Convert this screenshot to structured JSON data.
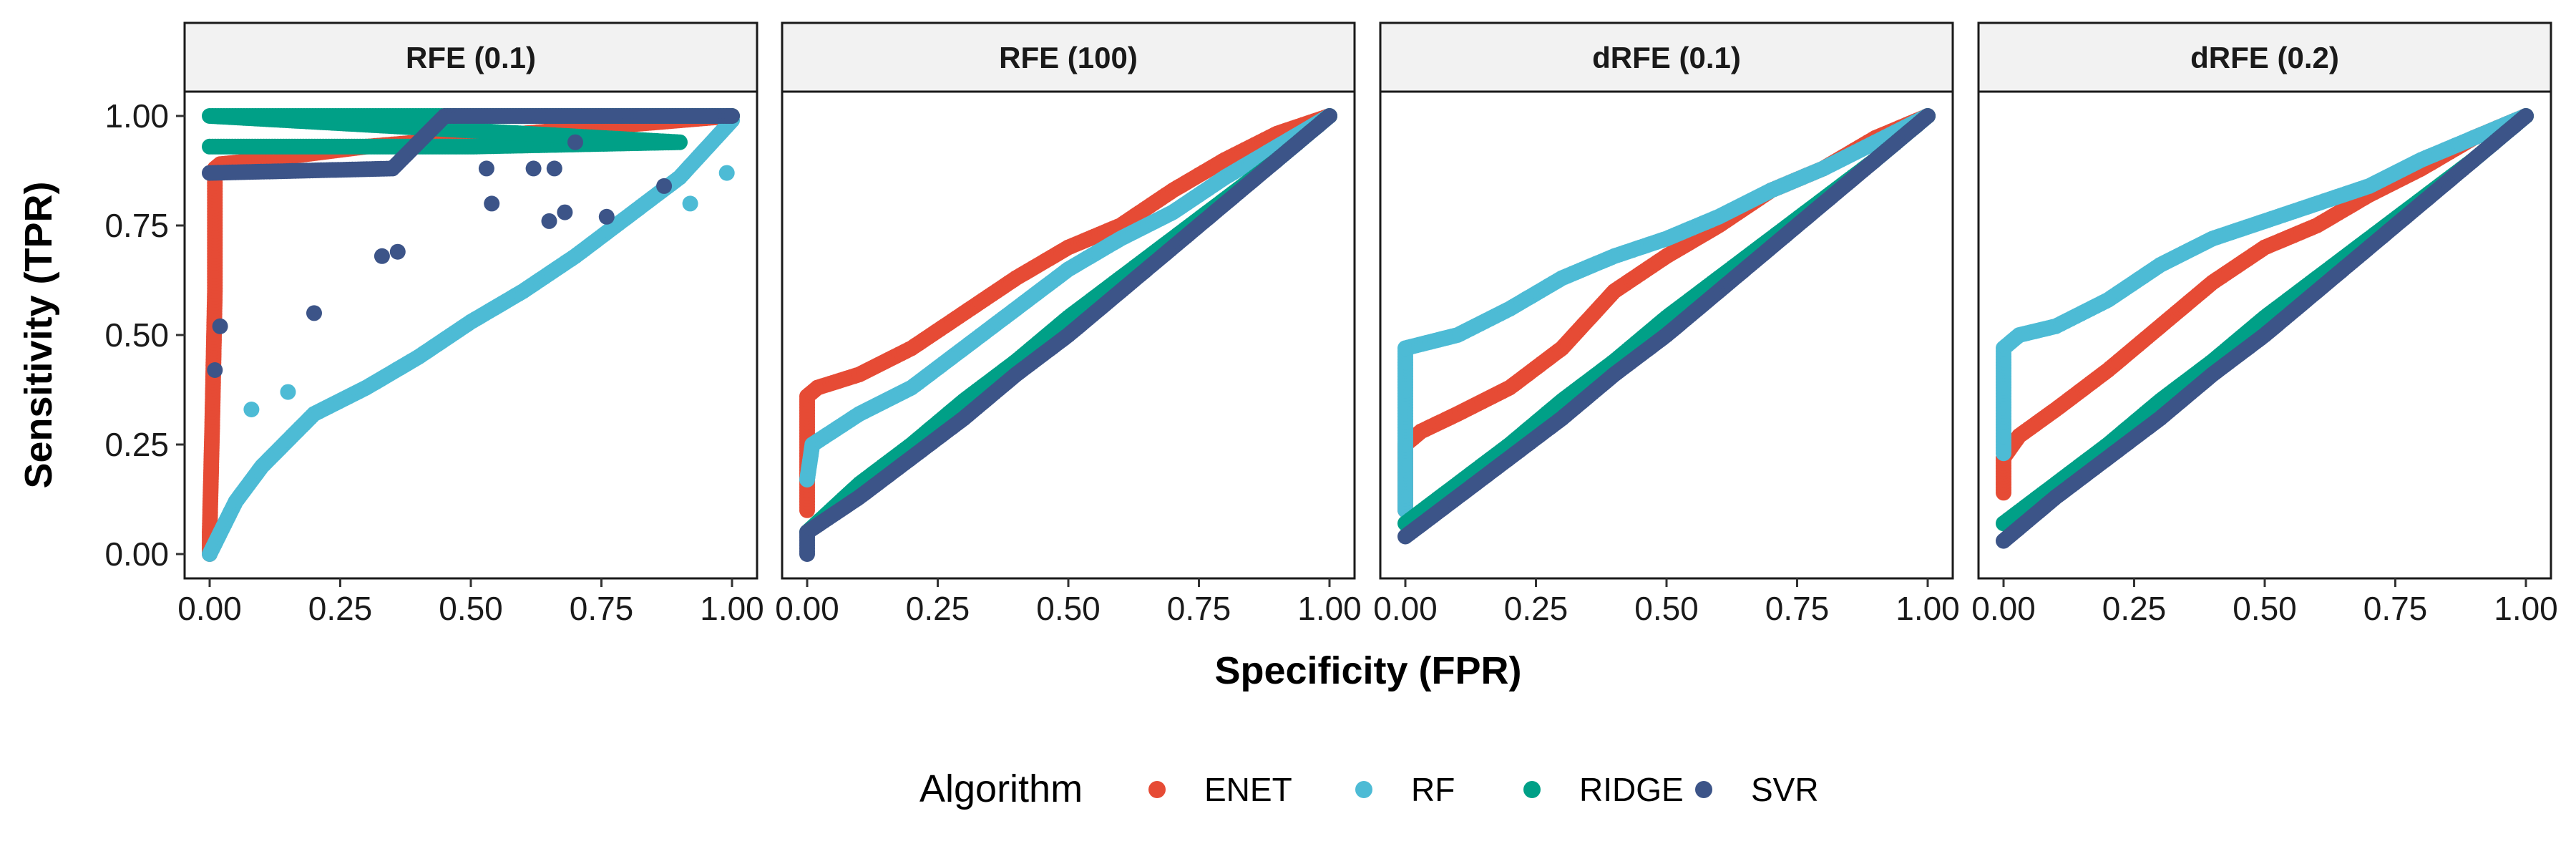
{
  "chart_data": {
    "type": "scatter",
    "xlabel": "Specificity (FPR)",
    "ylabel": "Sensitivity (TPR)",
    "xlim": [
      0,
      1
    ],
    "ylim": [
      0,
      1
    ],
    "x_ticks": [
      "0.00",
      "0.25",
      "0.50",
      "0.75",
      "1.00"
    ],
    "y_ticks": [
      "0.00",
      "0.25",
      "0.50",
      "0.75",
      "1.00"
    ],
    "grid": false,
    "legend": {
      "title": "Algorithm",
      "position": "bottom",
      "entries": [
        {
          "name": "ENET",
          "color": "#E64B35"
        },
        {
          "name": "RF",
          "color": "#4DBBD5"
        },
        {
          "name": "RIDGE",
          "color": "#00A087"
        },
        {
          "name": "SVR",
          "color": "#3C5488"
        }
      ]
    },
    "panels": [
      {
        "title": "RFE (0.1)",
        "series": [
          {
            "name": "ENET",
            "points": [
              [
                0,
                0
              ],
              [
                0,
                0.05
              ],
              [
                0.005,
                0.3
              ],
              [
                0.01,
                0.6
              ],
              [
                0.01,
                0.88
              ],
              [
                0.02,
                0.89
              ],
              [
                0.1,
                0.9
              ],
              [
                0.3,
                0.93
              ],
              [
                0.6,
                0.96
              ],
              [
                0.8,
                0.98
              ],
              [
                1.0,
                1.0
              ]
            ]
          },
          {
            "name": "RF",
            "points": [
              [
                0,
                0
              ],
              [
                0.05,
                0.12
              ],
              [
                0.1,
                0.2
              ],
              [
                0.2,
                0.32
              ],
              [
                0.3,
                0.38
              ],
              [
                0.4,
                0.45
              ],
              [
                0.5,
                0.53
              ],
              [
                0.6,
                0.6
              ],
              [
                0.7,
                0.68
              ],
              [
                0.8,
                0.77
              ],
              [
                0.9,
                0.86
              ],
              [
                1.0,
                0.99
              ]
            ],
            "scatter": [
              [
                0.08,
                0.33
              ],
              [
                0.15,
                0.37
              ],
              [
                0.92,
                0.8
              ],
              [
                0.99,
                0.87
              ]
            ]
          },
          {
            "name": "RIDGE",
            "points": [
              [
                0,
                0.93
              ],
              [
                0.5,
                0.93
              ],
              [
                0.9,
                0.94
              ],
              [
                0,
                1.0
              ],
              [
                0.4,
                1.0
              ],
              [
                0.8,
                1.0
              ],
              [
                1.0,
                1.0
              ]
            ]
          },
          {
            "name": "SVR",
            "points": [
              [
                0,
                0.87
              ],
              [
                0.35,
                0.88
              ],
              [
                0.45,
                1.0
              ],
              [
                1.0,
                1.0
              ]
            ],
            "scatter": [
              [
                0.2,
                0.55
              ],
              [
                0.33,
                0.68
              ],
              [
                0.36,
                0.69
              ],
              [
                0.53,
                0.88
              ],
              [
                0.54,
                0.8
              ],
              [
                0.65,
                0.76
              ],
              [
                0.68,
                0.78
              ],
              [
                0.62,
                0.88
              ],
              [
                0.66,
                0.88
              ],
              [
                0.7,
                0.94
              ],
              [
                0.76,
                0.77
              ],
              [
                0.87,
                0.84
              ],
              [
                0.02,
                0.52
              ],
              [
                0.01,
                0.42
              ]
            ]
          }
        ]
      },
      {
        "title": "RFE (100)",
        "series": [
          {
            "name": "ENET",
            "points": [
              [
                0,
                0.1
              ],
              [
                0,
                0.36
              ],
              [
                0.02,
                0.38
              ],
              [
                0.1,
                0.41
              ],
              [
                0.2,
                0.47
              ],
              [
                0.3,
                0.55
              ],
              [
                0.4,
                0.63
              ],
              [
                0.5,
                0.7
              ],
              [
                0.6,
                0.75
              ],
              [
                0.7,
                0.83
              ],
              [
                0.8,
                0.9
              ],
              [
                0.9,
                0.96
              ],
              [
                1.0,
                1.0
              ]
            ]
          },
          {
            "name": "RF",
            "points": [
              [
                0,
                0.17
              ],
              [
                0.01,
                0.25
              ],
              [
                0.1,
                0.32
              ],
              [
                0.2,
                0.38
              ],
              [
                0.3,
                0.47
              ],
              [
                0.4,
                0.56
              ],
              [
                0.5,
                0.65
              ],
              [
                0.6,
                0.72
              ],
              [
                0.7,
                0.78
              ],
              [
                0.8,
                0.86
              ],
              [
                0.9,
                0.93
              ],
              [
                1.0,
                1.0
              ]
            ]
          },
          {
            "name": "RIDGE",
            "points": [
              [
                0,
                0.05
              ],
              [
                0.1,
                0.16
              ],
              [
                0.2,
                0.25
              ],
              [
                0.3,
                0.35
              ],
              [
                0.4,
                0.44
              ],
              [
                0.5,
                0.54
              ],
              [
                0.6,
                0.63
              ],
              [
                0.7,
                0.72
              ],
              [
                0.8,
                0.81
              ],
              [
                0.9,
                0.9
              ],
              [
                1.0,
                1.0
              ]
            ]
          },
          {
            "name": "SVR",
            "points": [
              [
                0,
                0
              ],
              [
                0,
                0.05
              ],
              [
                0.1,
                0.13
              ],
              [
                0.2,
                0.22
              ],
              [
                0.3,
                0.31
              ],
              [
                0.4,
                0.41
              ],
              [
                0.5,
                0.5
              ],
              [
                0.6,
                0.6
              ],
              [
                0.7,
                0.7
              ],
              [
                0.8,
                0.8
              ],
              [
                0.9,
                0.9
              ],
              [
                1.0,
                1.0
              ]
            ]
          }
        ]
      },
      {
        "title": "dRFE (0.1)",
        "series": [
          {
            "name": "ENET",
            "points": [
              [
                0,
                0.1
              ],
              [
                0,
                0.25
              ],
              [
                0.03,
                0.28
              ],
              [
                0.1,
                0.32
              ],
              [
                0.2,
                0.38
              ],
              [
                0.3,
                0.47
              ],
              [
                0.4,
                0.6
              ],
              [
                0.5,
                0.68
              ],
              [
                0.6,
                0.75
              ],
              [
                0.7,
                0.83
              ],
              [
                0.8,
                0.88
              ],
              [
                0.9,
                0.95
              ],
              [
                1.0,
                1.0
              ]
            ]
          },
          {
            "name": "RF",
            "points": [
              [
                0,
                0.1
              ],
              [
                0,
                0.47
              ],
              [
                0.1,
                0.5
              ],
              [
                0.2,
                0.56
              ],
              [
                0.3,
                0.63
              ],
              [
                0.4,
                0.68
              ],
              [
                0.5,
                0.72
              ],
              [
                0.6,
                0.77
              ],
              [
                0.7,
                0.83
              ],
              [
                0.8,
                0.88
              ],
              [
                0.9,
                0.94
              ],
              [
                1.0,
                1.0
              ]
            ]
          },
          {
            "name": "RIDGE",
            "points": [
              [
                0,
                0.07
              ],
              [
                0.1,
                0.16
              ],
              [
                0.2,
                0.25
              ],
              [
                0.3,
                0.35
              ],
              [
                0.4,
                0.44
              ],
              [
                0.5,
                0.54
              ],
              [
                0.6,
                0.63
              ],
              [
                0.7,
                0.72
              ],
              [
                0.8,
                0.81
              ],
              [
                0.9,
                0.9
              ],
              [
                1.0,
                1.0
              ]
            ]
          },
          {
            "name": "SVR",
            "points": [
              [
                0,
                0.04
              ],
              [
                0.1,
                0.13
              ],
              [
                0.2,
                0.22
              ],
              [
                0.3,
                0.31
              ],
              [
                0.4,
                0.41
              ],
              [
                0.5,
                0.5
              ],
              [
                0.6,
                0.6
              ],
              [
                0.7,
                0.7
              ],
              [
                0.8,
                0.8
              ],
              [
                0.9,
                0.9
              ],
              [
                1.0,
                1.0
              ]
            ]
          }
        ]
      },
      {
        "title": "dRFE (0.2)",
        "series": [
          {
            "name": "ENET",
            "points": [
              [
                0,
                0.14
              ],
              [
                0,
                0.22
              ],
              [
                0.03,
                0.27
              ],
              [
                0.1,
                0.33
              ],
              [
                0.2,
                0.42
              ],
              [
                0.3,
                0.52
              ],
              [
                0.4,
                0.62
              ],
              [
                0.5,
                0.7
              ],
              [
                0.6,
                0.75
              ],
              [
                0.7,
                0.82
              ],
              [
                0.8,
                0.88
              ],
              [
                0.9,
                0.95
              ],
              [
                1.0,
                1.0
              ]
            ]
          },
          {
            "name": "RF",
            "points": [
              [
                0,
                0.23
              ],
              [
                0,
                0.47
              ],
              [
                0.03,
                0.5
              ],
              [
                0.1,
                0.52
              ],
              [
                0.2,
                0.58
              ],
              [
                0.3,
                0.66
              ],
              [
                0.4,
                0.72
              ],
              [
                0.5,
                0.76
              ],
              [
                0.6,
                0.8
              ],
              [
                0.7,
                0.84
              ],
              [
                0.8,
                0.9
              ],
              [
                0.9,
                0.95
              ],
              [
                1.0,
                1.0
              ]
            ]
          },
          {
            "name": "RIDGE",
            "points": [
              [
                0,
                0.07
              ],
              [
                0.1,
                0.16
              ],
              [
                0.2,
                0.25
              ],
              [
                0.3,
                0.35
              ],
              [
                0.4,
                0.44
              ],
              [
                0.5,
                0.54
              ],
              [
                0.6,
                0.63
              ],
              [
                0.7,
                0.72
              ],
              [
                0.8,
                0.81
              ],
              [
                0.9,
                0.9
              ],
              [
                1.0,
                1.0
              ]
            ]
          },
          {
            "name": "SVR",
            "points": [
              [
                0,
                0.03
              ],
              [
                0.1,
                0.13
              ],
              [
                0.2,
                0.22
              ],
              [
                0.3,
                0.31
              ],
              [
                0.4,
                0.41
              ],
              [
                0.5,
                0.5
              ],
              [
                0.6,
                0.6
              ],
              [
                0.7,
                0.7
              ],
              [
                0.8,
                0.8
              ],
              [
                0.9,
                0.9
              ],
              [
                1.0,
                1.0
              ]
            ]
          }
        ]
      }
    ]
  }
}
